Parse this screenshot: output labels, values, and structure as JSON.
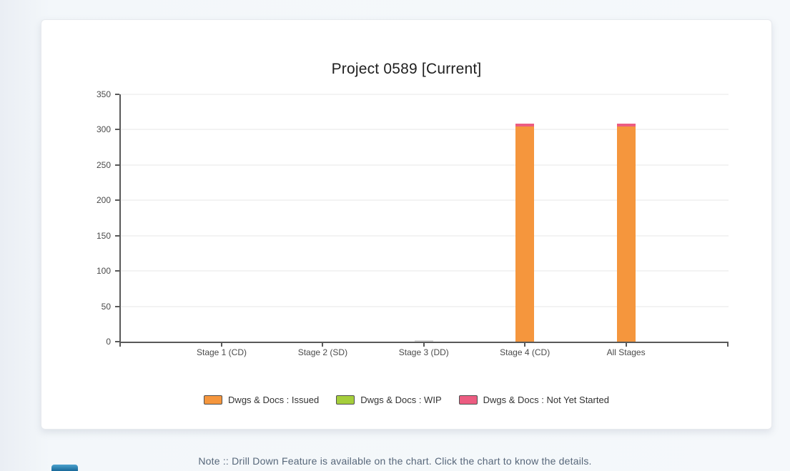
{
  "page": {
    "note": "Note :: Drill Down Feature is available on the chart. Click the chart to know the details.",
    "floating_icon": "chat-widget-icon",
    "background_color": "#f3f7fa",
    "card_color": "#ffffff"
  },
  "chart_data": {
    "type": "bar",
    "stacked": true,
    "title": "Project 0589 [Current]",
    "categories": [
      "Stage 1 (CD)",
      "Stage 2 (SD)",
      "Stage 3 (DD)",
      "Stage 4 (CD)",
      "All Stages"
    ],
    "series": [
      {
        "name": "Dwgs & Docs : Issued",
        "color": "#F5963D",
        "values": [
          0,
          0,
          0,
          304,
          304
        ]
      },
      {
        "name": "Dwgs & Docs : WIP",
        "color": "#A5CE3B",
        "values": [
          0,
          0,
          0,
          0,
          0
        ]
      },
      {
        "name": "Dwgs & Docs : Not Yet Started",
        "color": "#EC5C81",
        "values": [
          0,
          0,
          0,
          4,
          4
        ]
      }
    ],
    "extras": {
      "stage3_sliver": {
        "category_index": 2,
        "value": 1,
        "color": "#d9d9d9"
      }
    },
    "xlabel": "",
    "ylabel": "",
    "ylim": [
      0,
      350
    ],
    "ytick_step": 50,
    "grid": true,
    "legend_position": "bottom",
    "axis_color": "#595959",
    "gridline_color": "#f3f3f3"
  }
}
